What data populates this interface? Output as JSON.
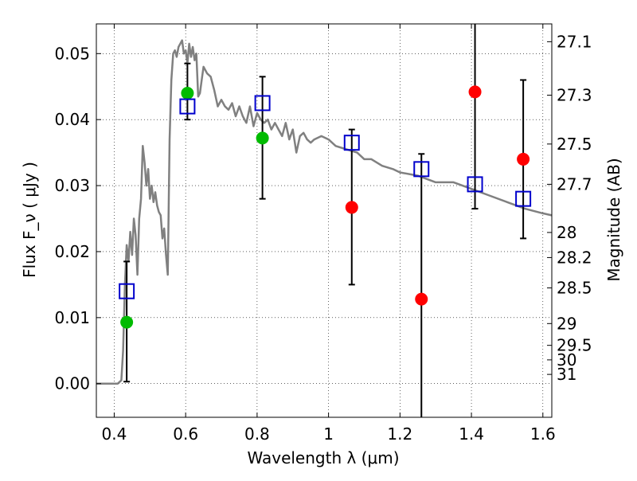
{
  "chart_data": {
    "type": "scatter",
    "title": "",
    "xlabel": "Wavelength  λ (μm)",
    "ylabel": "Flux  F_ν  ( μJy )",
    "ylabel_right": "Magnitude (AB)",
    "xlim": [
      0.35,
      1.625
    ],
    "ylim": [
      -0.0051,
      0.0545
    ],
    "x_ticks": [
      0.4,
      0.6,
      0.8,
      1.0,
      1.2,
      1.4,
      1.6
    ],
    "x_tick_labels": [
      "0.4",
      "0.6",
      "0.8",
      "1",
      "1.2",
      "1.4",
      "1.6"
    ],
    "y_ticks": [
      0.0,
      0.01,
      0.02,
      0.03,
      0.04,
      0.05
    ],
    "y_tick_labels": [
      "0.00",
      "0.01",
      "0.02",
      "0.03",
      "0.04",
      "0.05"
    ],
    "right_ticks": [
      {
        "label": "27.1",
        "flux": 0.0518
      },
      {
        "label": "27.3",
        "flux": 0.0437
      },
      {
        "label": "27.5",
        "flux": 0.0363
      },
      {
        "label": "27.7",
        "flux": 0.0302
      },
      {
        "label": "28",
        "flux": 0.0229
      },
      {
        "label": "28.2",
        "flux": 0.0191
      },
      {
        "label": "28.5",
        "flux": 0.0145
      },
      {
        "label": "29",
        "flux": 0.0091
      },
      {
        "label": "29.5",
        "flux": 0.0058
      },
      {
        "label": "30",
        "flux": 0.0036
      },
      {
        "label": "31",
        "flux": 0.0014
      }
    ],
    "grid": true,
    "colors": {
      "sed": "#808080",
      "model": "#0000cc",
      "green": "#00bb00",
      "red": "#ff0000",
      "error": "#000000"
    },
    "sed_curve": {
      "x": [
        0.35,
        0.39,
        0.4,
        0.41,
        0.42,
        0.425,
        0.43,
        0.435,
        0.44,
        0.445,
        0.45,
        0.455,
        0.46,
        0.465,
        0.47,
        0.475,
        0.48,
        0.485,
        0.49,
        0.495,
        0.5,
        0.505,
        0.51,
        0.515,
        0.52,
        0.525,
        0.53,
        0.535,
        0.54,
        0.545,
        0.55,
        0.555,
        0.56,
        0.565,
        0.57,
        0.575,
        0.58,
        0.59,
        0.595,
        0.6,
        0.605,
        0.61,
        0.615,
        0.62,
        0.625,
        0.63,
        0.635,
        0.64,
        0.645,
        0.65,
        0.66,
        0.67,
        0.68,
        0.69,
        0.7,
        0.71,
        0.72,
        0.73,
        0.74,
        0.75,
        0.76,
        0.77,
        0.78,
        0.79,
        0.8,
        0.81,
        0.82,
        0.83,
        0.84,
        0.85,
        0.86,
        0.87,
        0.88,
        0.89,
        0.9,
        0.91,
        0.92,
        0.93,
        0.94,
        0.95,
        0.96,
        0.98,
        1.0,
        1.02,
        1.05,
        1.08,
        1.1,
        1.12,
        1.15,
        1.18,
        1.2,
        1.25,
        1.3,
        1.35,
        1.4,
        1.45,
        1.5,
        1.55,
        1.6,
        1.625
      ],
      "y": [
        0.0,
        0.0,
        0.0,
        0.0,
        0.0005,
        0.005,
        0.015,
        0.021,
        0.0185,
        0.023,
        0.0195,
        0.025,
        0.0225,
        0.0165,
        0.025,
        0.028,
        0.036,
        0.0335,
        0.03,
        0.0325,
        0.028,
        0.03,
        0.0275,
        0.029,
        0.027,
        0.026,
        0.0255,
        0.022,
        0.0235,
        0.0195,
        0.0165,
        0.037,
        0.046,
        0.05,
        0.0505,
        0.0495,
        0.051,
        0.052,
        0.05,
        0.0505,
        0.0485,
        0.0515,
        0.0495,
        0.051,
        0.049,
        0.05,
        0.0435,
        0.044,
        0.046,
        0.048,
        0.047,
        0.0465,
        0.0445,
        0.042,
        0.043,
        0.042,
        0.0415,
        0.0425,
        0.0405,
        0.042,
        0.0405,
        0.0395,
        0.042,
        0.039,
        0.041,
        0.04,
        0.0395,
        0.04,
        0.0385,
        0.0395,
        0.0385,
        0.0375,
        0.0395,
        0.037,
        0.0385,
        0.035,
        0.0375,
        0.038,
        0.037,
        0.0365,
        0.037,
        0.0375,
        0.037,
        0.036,
        0.0355,
        0.035,
        0.034,
        0.034,
        0.033,
        0.0325,
        0.032,
        0.0315,
        0.0305,
        0.0305,
        0.0295,
        0.0285,
        0.0275,
        0.0265,
        0.0258,
        0.0255
      ]
    },
    "model_points": {
      "x": [
        0.435,
        0.605,
        0.815,
        1.065,
        1.26,
        1.41,
        1.545
      ],
      "y": [
        0.014,
        0.042,
        0.0425,
        0.0365,
        0.0325,
        0.0302,
        0.028
      ]
    },
    "observed_green": {
      "x": [
        0.435,
        0.605,
        0.815
      ],
      "y": [
        0.0093,
        0.044,
        0.0372
      ]
    },
    "observed_red": {
      "x": [
        1.065,
        1.26,
        1.41,
        1.545
      ],
      "y": [
        0.0267,
        0.0128,
        0.0442,
        0.034
      ]
    },
    "error_bars": {
      "x": [
        0.435,
        0.605,
        0.815,
        1.065,
        1.26,
        1.41,
        1.545
      ],
      "low": [
        0.0003,
        0.04,
        0.028,
        0.015,
        -0.006,
        0.0265,
        0.022
      ],
      "high": [
        0.0185,
        0.0485,
        0.0465,
        0.0385,
        0.0348,
        0.056,
        0.046
      ]
    }
  }
}
